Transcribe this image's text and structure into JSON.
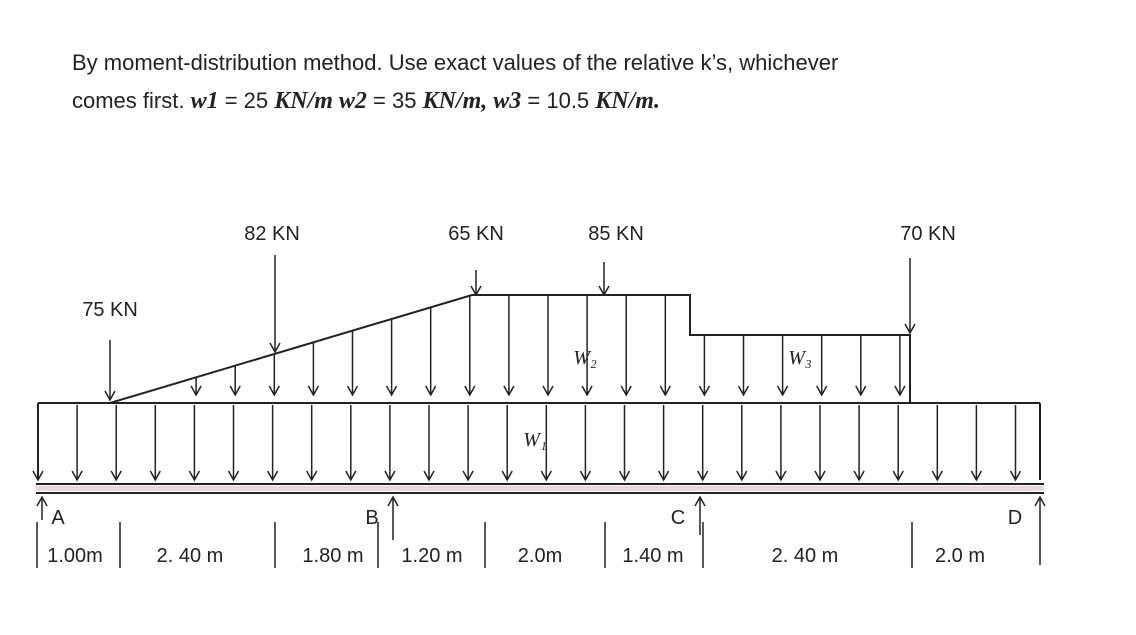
{
  "problem": {
    "line1": "By moment-distribution method. Use exact values of the relative k’s, whichever",
    "line2": [
      {
        "text": "comes first. ",
        "math": false
      },
      {
        "text": "w1",
        "math": true
      },
      {
        "text": " = 25 ",
        "math": false
      },
      {
        "text": "KN/m w2",
        "math": true
      },
      {
        "text": " = 35 ",
        "math": false
      },
      {
        "text": "KN/m, w3",
        "math": true
      },
      {
        "text": " = 10.5 ",
        "math": false
      },
      {
        "text": "KN/m.",
        "math": true
      }
    ]
  },
  "loads": [
    "75 KN",
    "82 KN",
    "65 KN",
    "85 KN",
    "70 KN"
  ],
  "intensities": [
    "W₁",
    "W₂",
    "W₃"
  ],
  "supports": [
    "A",
    "B",
    "C",
    "D"
  ],
  "spans": [
    "1.00m",
    "2. 40 m",
    "1.80 m",
    "1.20 m",
    "2.0m",
    "1.40 m",
    "2. 40 m",
    "2.0 m"
  ]
}
